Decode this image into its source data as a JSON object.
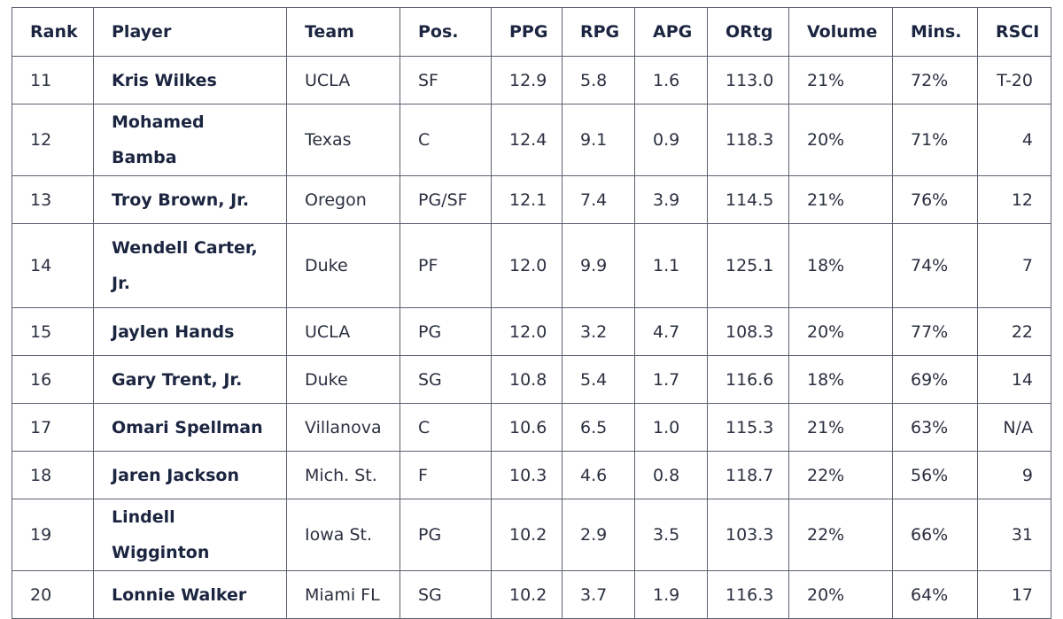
{
  "table": {
    "headers": [
      "Rank",
      "Player",
      "Team",
      "Pos.",
      "PPG",
      "RPG",
      "APG",
      "ORtg",
      "Volume",
      "Mins.",
      "RSCI"
    ],
    "rows": [
      {
        "rank": "11",
        "player": "Kris Wilkes",
        "team": "UCLA",
        "pos": "SF",
        "ppg": "12.9",
        "rpg": "5.8",
        "apg": "1.6",
        "ortg": "113.0",
        "volume": "21%",
        "mins": "72%",
        "rsci": "T-20"
      },
      {
        "rank": "12",
        "player": "Mohamed Bamba",
        "team": "Texas",
        "pos": "C",
        "ppg": "12.4",
        "rpg": "9.1",
        "apg": "0.9",
        "ortg": "118.3",
        "volume": "20%",
        "mins": "71%",
        "rsci": "4"
      },
      {
        "rank": "13",
        "player": "Troy Brown, Jr.",
        "team": "Oregon",
        "pos": "PG/SF",
        "ppg": "12.1",
        "rpg": "7.4",
        "apg": "3.9",
        "ortg": "114.5",
        "volume": "21%",
        "mins": "76%",
        "rsci": "12"
      },
      {
        "rank": "14",
        "player": "Wendell Carter, Jr.",
        "team": "Duke",
        "pos": "PF",
        "ppg": "12.0",
        "rpg": "9.9",
        "apg": "1.1",
        "ortg": "125.1",
        "volume": "18%",
        "mins": "74%",
        "rsci": "7"
      },
      {
        "rank": "15",
        "player": "Jaylen Hands",
        "team": "UCLA",
        "pos": "PG",
        "ppg": "12.0",
        "rpg": "3.2",
        "apg": "4.7",
        "ortg": "108.3",
        "volume": "20%",
        "mins": "77%",
        "rsci": "22"
      },
      {
        "rank": "16",
        "player": "Gary Trent, Jr.",
        "team": "Duke",
        "pos": "SG",
        "ppg": "10.8",
        "rpg": "5.4",
        "apg": "1.7",
        "ortg": "116.6",
        "volume": "18%",
        "mins": "69%",
        "rsci": "14"
      },
      {
        "rank": "17",
        "player": "Omari Spellman",
        "team": "Villanova",
        "pos": "C",
        "ppg": "10.6",
        "rpg": "6.5",
        "apg": "1.0",
        "ortg": "115.3",
        "volume": "21%",
        "mins": "63%",
        "rsci": "N/A"
      },
      {
        "rank": "18",
        "player": "Jaren Jackson",
        "team": "Mich. St.",
        "pos": "F",
        "ppg": "10.3",
        "rpg": "4.6",
        "apg": "0.8",
        "ortg": "118.7",
        "volume": "22%",
        "mins": "56%",
        "rsci": "9"
      },
      {
        "rank": "19",
        "player": "Lindell Wigginton",
        "team": "Iowa St.",
        "pos": "PG",
        "ppg": "10.2",
        "rpg": "2.9",
        "apg": "3.5",
        "ortg": "103.3",
        "volume": "22%",
        "mins": "66%",
        "rsci": "31"
      },
      {
        "rank": "20",
        "player": "Lonnie Walker",
        "team": "Miami FL",
        "pos": "SG",
        "ppg": "10.2",
        "rpg": "3.7",
        "apg": "1.9",
        "ortg": "116.3",
        "volume": "20%",
        "mins": "64%",
        "rsci": "17"
      }
    ]
  }
}
